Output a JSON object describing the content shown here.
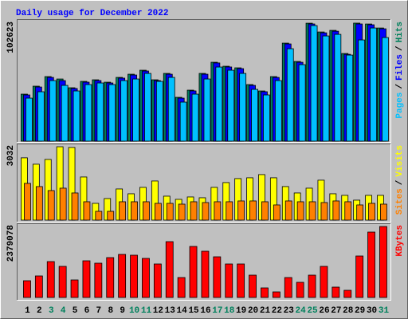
{
  "chart_data": [
    {
      "type": "bar",
      "title": "Daily usage for December 2022",
      "ylim": [
        0,
        102623
      ],
      "yticks": [
        102623
      ],
      "legend_separator": "/",
      "series": [
        {
          "name": "Hits",
          "color": "#00805c",
          "values": [
            40890,
            47820,
            56130,
            54050,
            46430,
            51980,
            53360,
            51280,
            55440,
            58210,
            61680,
            53360,
            58900,
            38120,
            44350,
            58900,
            68610,
            65140,
            63760,
            49200,
            43660,
            56130,
            85240,
            69300,
            102560,
            94940,
            96330,
            76230,
            102623,
            101870,
            98400
          ]
        },
        {
          "name": "Files",
          "color": "#0000ff",
          "values": [
            40200,
            47100,
            55440,
            52670,
            45800,
            51300,
            52670,
            50600,
            54800,
            57520,
            61000,
            52670,
            58210,
            37420,
            43700,
            58210,
            68000,
            64500,
            63060,
            48500,
            43000,
            55400,
            84550,
            68600,
            101900,
            94200,
            95600,
            75500,
            101900,
            101200,
            97700
          ]
        },
        {
          "name": "Pages",
          "color": "#00c0ff",
          "values": [
            37420,
            42970,
            52670,
            48510,
            43660,
            49200,
            50590,
            49200,
            52670,
            54050,
            58900,
            51980,
            55440,
            33960,
            40890,
            54050,
            64450,
            61680,
            58900,
            45050,
            40200,
            52670,
            80390,
            66530,
            100490,
            91480,
            92860,
            74840,
            88010,
            98400,
            90090
          ]
        }
      ]
    },
    {
      "type": "bar",
      "ylim": [
        0,
        3032
      ],
      "yticks": [
        3032
      ],
      "legend_separator": "/",
      "series": [
        {
          "name": "Visits",
          "color": "#ffff00",
          "values": [
            2574,
            2310,
            2508,
            3032,
            3003,
            1782,
            693,
            891,
            1287,
            1089,
            1353,
            1617,
            990,
            858,
            957,
            924,
            1353,
            1551,
            1716,
            1749,
            1881,
            1749,
            1386,
            1122,
            1320,
            1650,
            1089,
            1023,
            825,
            1023,
            1023
          ]
        },
        {
          "name": "Sites",
          "color": "#ff8000",
          "values": [
            1518,
            1386,
            1221,
            1320,
            1122,
            759,
            363,
            363,
            759,
            759,
            759,
            693,
            693,
            660,
            759,
            726,
            759,
            759,
            792,
            792,
            759,
            627,
            792,
            759,
            759,
            726,
            792,
            759,
            627,
            693,
            660
          ]
        }
      ]
    },
    {
      "type": "bar",
      "ylim": [
        0,
        2379078
      ],
      "yticks": [
        2379078
      ],
      "categories": [
        "1",
        "2",
        "3",
        "4",
        "5",
        "6",
        "7",
        "8",
        "9",
        "10",
        "11",
        "12",
        "13",
        "14",
        "15",
        "16",
        "17",
        "18",
        "19",
        "20",
        "21",
        "22",
        "23",
        "24",
        "25",
        "26",
        "27",
        "28",
        "29",
        "30",
        "31"
      ],
      "category_colors": [
        "#000000",
        "#000000",
        "#00805c",
        "#00805c",
        "#000000",
        "#000000",
        "#000000",
        "#000000",
        "#000000",
        "#00805c",
        "#00805c",
        "#000000",
        "#000000",
        "#000000",
        "#000000",
        "#000000",
        "#00805c",
        "#00805c",
        "#000000",
        "#000000",
        "#000000",
        "#000000",
        "#000000",
        "#00805c",
        "#00805c",
        "#000000",
        "#000000",
        "#000000",
        "#000000",
        "#000000",
        "#00805c"
      ],
      "series": [
        {
          "name": "KBytes",
          "color": "#ff0000",
          "values": [
            561351,
            721737,
            1202895,
            1042509,
            588082,
            1229626,
            1149433,
            1336550,
            1443474,
            1416743,
            1309819,
            1122702,
            1871170,
            668275,
            1710784,
            1550398,
            1363281,
            1122702,
            1122702,
            748468,
            320772,
            187117,
            668275,
            507889,
            748468,
            1042509,
            347503,
            240579,
            1390012,
            2191942,
            2379078
          ]
        }
      ]
    }
  ]
}
